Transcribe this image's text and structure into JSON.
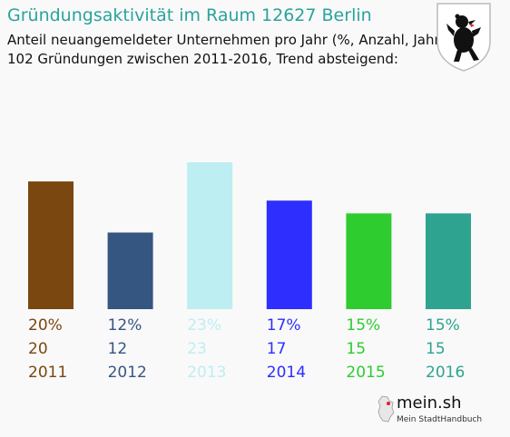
{
  "header": {
    "title": "Gründungsaktivität im Raum 12627 Berlin",
    "subtitle_line1": "Anteil neuangemeldeter Unternehmen pro Jahr (%, Anzahl, Jahr)",
    "subtitle_line2": "102 Gründungen zwischen 2011-2016, Trend absteigend:"
  },
  "emblem": {
    "icon": "berlin-bear-coat-of-arms-icon"
  },
  "brand": {
    "name": "mein.sh",
    "tagline": "Mein StadtHandbuch",
    "icon": "germany-map-icon"
  },
  "chart_data": {
    "type": "bar",
    "categories": [
      "2011",
      "2012",
      "2013",
      "2014",
      "2015",
      "2016"
    ],
    "values": [
      20,
      12,
      23,
      17,
      15,
      15
    ],
    "percent_labels": [
      "20%",
      "12%",
      "23%",
      "17%",
      "15%",
      "15%"
    ],
    "count_labels": [
      "20",
      "12",
      "23",
      "17",
      "15",
      "15"
    ],
    "colors": [
      "#7a4710",
      "#365682",
      "#bdeef2",
      "#2e2eff",
      "#2ecc2e",
      "#2ea390"
    ],
    "ylim": [
      0,
      23
    ],
    "grid": false,
    "legend": "none"
  }
}
